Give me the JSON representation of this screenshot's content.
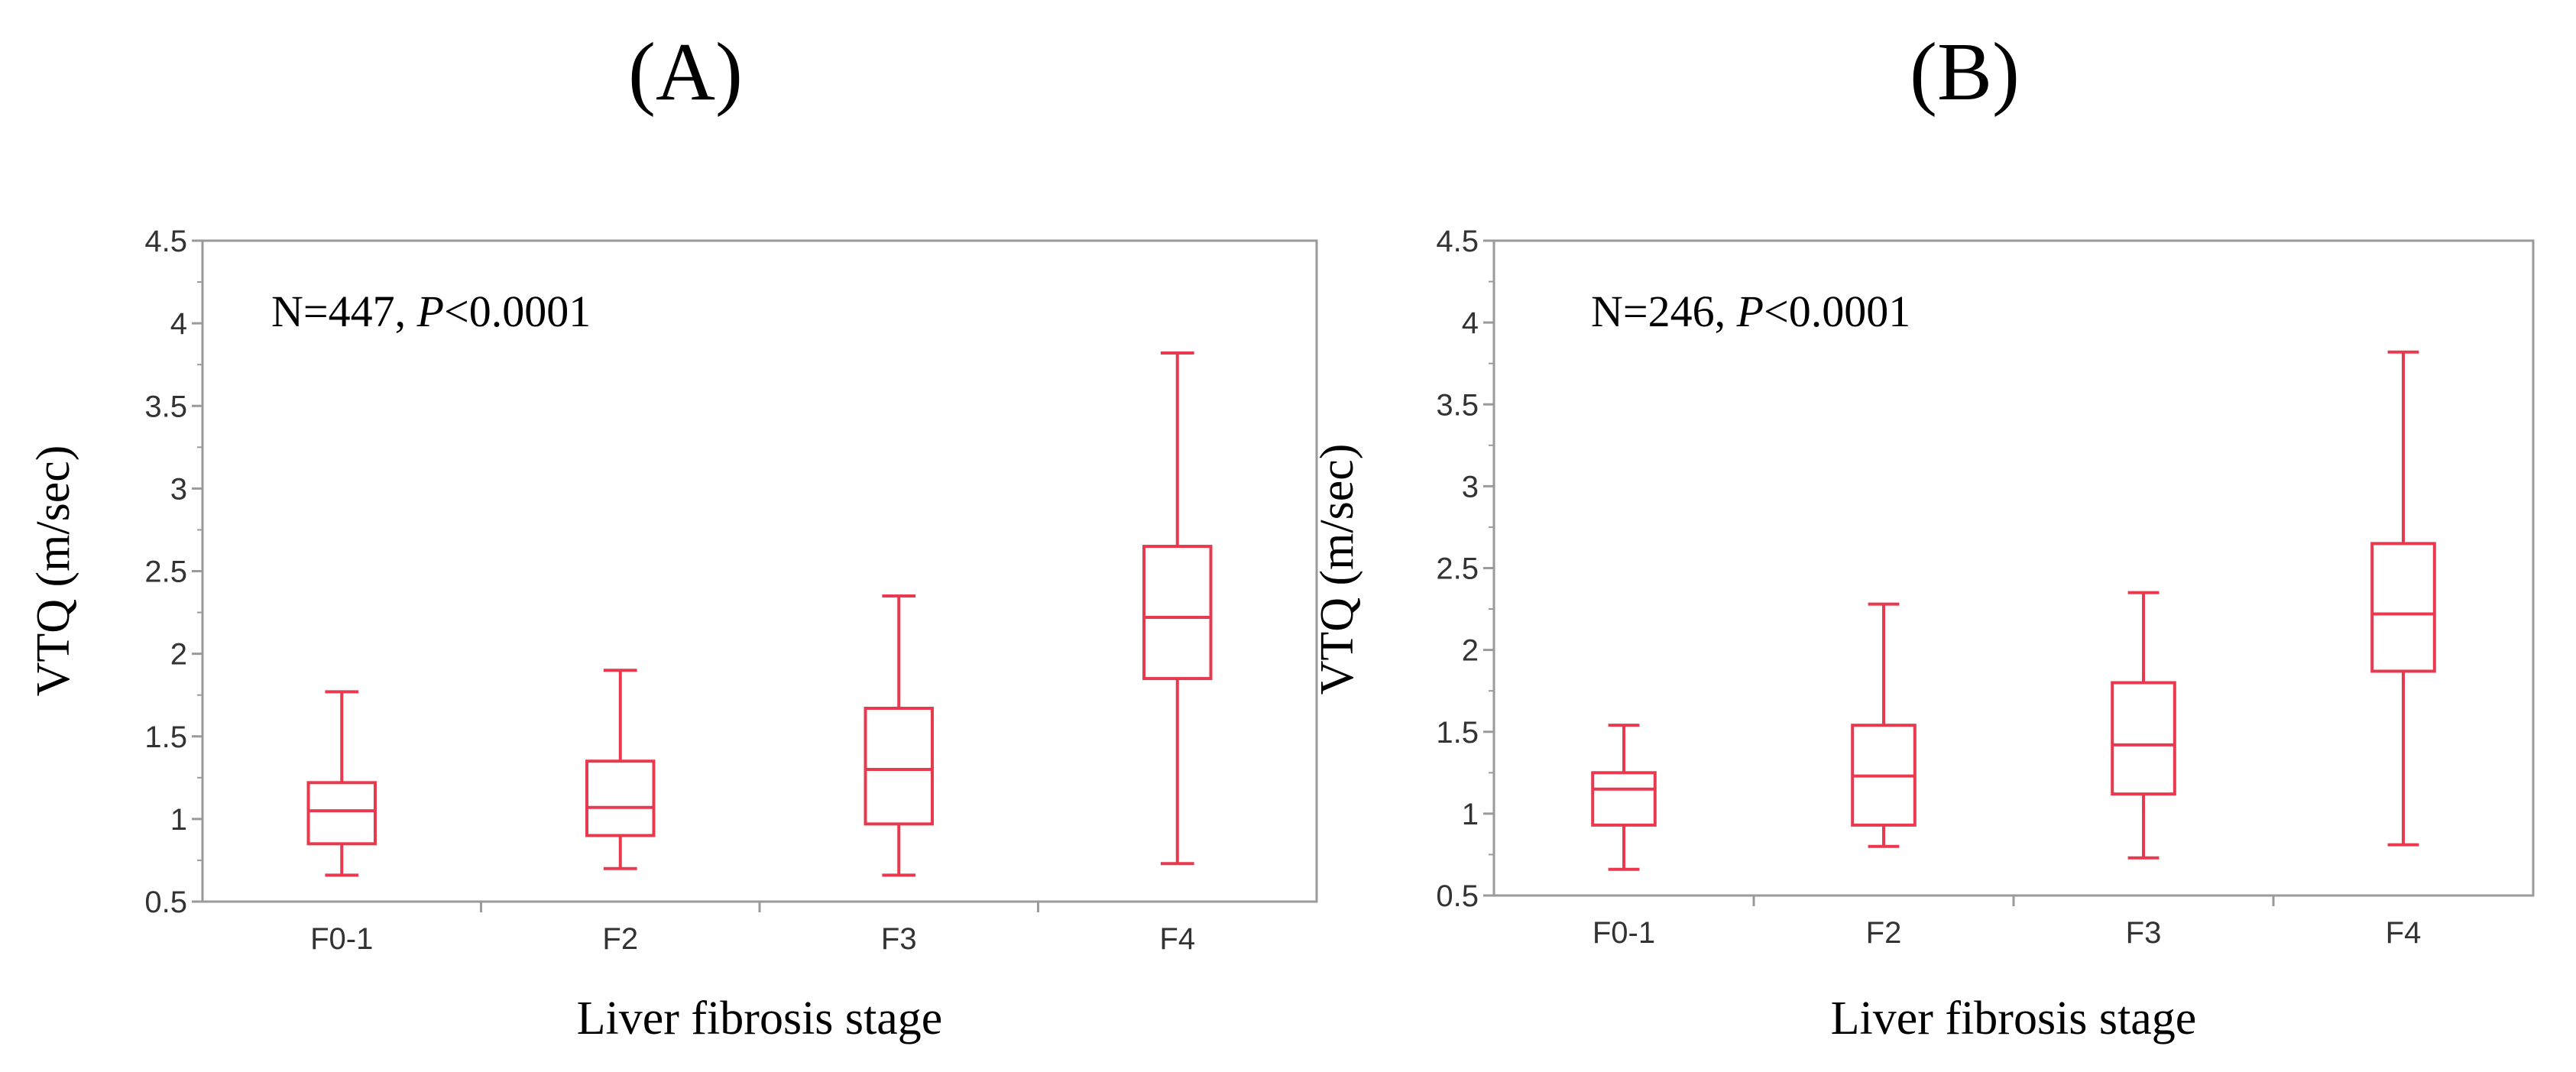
{
  "figure": {
    "background": "#ffffff",
    "box_color": "#e8394f",
    "axis_color": "#9a9a9a"
  },
  "chart_data": [
    {
      "type": "box",
      "panel_label": "(A)",
      "annotation": {
        "prefix": "N=447, ",
        "p_symbol": "P",
        "suffix": "<0.0001"
      },
      "xlabel": "Liver fibrosis stage",
      "ylabel": "VTQ (m/sec)",
      "ylim": [
        0.5,
        4.5
      ],
      "yticks": [
        "0.5",
        "1",
        "1.5",
        "2",
        "2.5",
        "3",
        "3.5",
        "4",
        "4.5"
      ],
      "yticks_values": [
        0.5,
        1,
        1.5,
        2,
        2.5,
        3,
        3.5,
        4,
        4.5
      ],
      "categories": [
        "F0-1",
        "F2",
        "F3",
        "F4"
      ],
      "boxes": [
        {
          "min": 0.66,
          "q1": 0.85,
          "median": 1.05,
          "q3": 1.22,
          "max": 1.77
        },
        {
          "min": 0.7,
          "q1": 0.9,
          "median": 1.07,
          "q3": 1.35,
          "max": 1.9
        },
        {
          "min": 0.66,
          "q1": 0.97,
          "median": 1.3,
          "q3": 1.67,
          "max": 2.35
        },
        {
          "min": 0.73,
          "q1": 1.85,
          "median": 2.22,
          "q3": 2.65,
          "max": 3.82
        }
      ]
    },
    {
      "type": "box",
      "panel_label": "(B)",
      "annotation": {
        "prefix": "N=246, ",
        "p_symbol": "P",
        "suffix": "<0.0001"
      },
      "xlabel": "Liver fibrosis stage",
      "ylabel": "VTQ (m/sec)",
      "ylim": [
        0.5,
        4.5
      ],
      "yticks": [
        "0.5",
        "1",
        "1.5",
        "2",
        "2.5",
        "3",
        "3.5",
        "4",
        "4.5"
      ],
      "yticks_values": [
        0.5,
        1,
        1.5,
        2,
        2.5,
        3,
        3.5,
        4,
        4.5
      ],
      "categories": [
        "F0-1",
        "F2",
        "F3",
        "F4"
      ],
      "boxes": [
        {
          "min": 0.66,
          "q1": 0.93,
          "median": 1.15,
          "q3": 1.25,
          "max": 1.54
        },
        {
          "min": 0.8,
          "q1": 0.93,
          "median": 1.23,
          "q3": 1.54,
          "max": 2.28
        },
        {
          "min": 0.73,
          "q1": 1.12,
          "median": 1.42,
          "q3": 1.8,
          "max": 2.35
        },
        {
          "min": 0.81,
          "q1": 1.87,
          "median": 2.22,
          "q3": 2.65,
          "max": 3.82
        }
      ]
    }
  ]
}
